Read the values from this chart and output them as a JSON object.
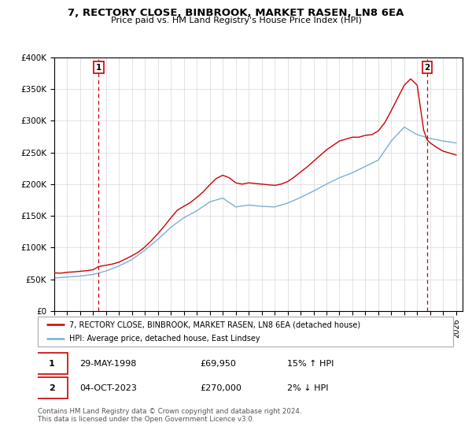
{
  "title": "7, RECTORY CLOSE, BINBROOK, MARKET RASEN, LN8 6EA",
  "subtitle": "Price paid vs. HM Land Registry's House Price Index (HPI)",
  "property_label": "7, RECTORY CLOSE, BINBROOK, MARKET RASEN, LN8 6EA (detached house)",
  "hpi_label": "HPI: Average price, detached house, East Lindsey",
  "transaction1_date": "29-MAY-1998",
  "transaction1_price": "£69,950",
  "transaction1_hpi": "15% ↑ HPI",
  "transaction2_date": "04-OCT-2023",
  "transaction2_price": "£270,000",
  "transaction2_hpi": "2% ↓ HPI",
  "footer": "Contains HM Land Registry data © Crown copyright and database right 2024.\nThis data is licensed under the Open Government Licence v3.0.",
  "property_color": "#cc0000",
  "hpi_color": "#7bafd4",
  "transaction1_x": 1998.42,
  "transaction2_x": 2023.76,
  "ylim": [
    0,
    400000
  ],
  "xlim": [
    1995.0,
    2026.5
  ],
  "hpi_x": [
    1995,
    1996,
    1997,
    1998,
    1999,
    2000,
    2001,
    2002,
    2003,
    2004,
    2005,
    2006,
    2007,
    2008,
    2009,
    2010,
    2011,
    2012,
    2013,
    2014,
    2015,
    2016,
    2017,
    2018,
    2019,
    2020,
    2021,
    2022,
    2023,
    2024,
    2025,
    2026
  ],
  "hpi_values": [
    52000,
    53500,
    55000,
    57500,
    63000,
    71000,
    81000,
    96000,
    113000,
    132000,
    147000,
    158000,
    172000,
    178000,
    164000,
    167000,
    165000,
    164000,
    170000,
    179000,
    189000,
    200000,
    210000,
    218000,
    228000,
    238000,
    268000,
    290000,
    278000,
    272000,
    268000,
    265000
  ],
  "property_values_x": [
    1995.0,
    1995.5,
    1996.0,
    1996.5,
    1997.0,
    1997.5,
    1998.0,
    1998.42,
    1999.0,
    1999.5,
    2000.0,
    2000.5,
    2001.0,
    2001.5,
    2002.0,
    2002.5,
    2003.0,
    2003.5,
    2004.0,
    2004.5,
    2005.0,
    2005.5,
    2006.0,
    2006.5,
    2007.0,
    2007.5,
    2008.0,
    2008.5,
    2009.0,
    2009.5,
    2010.0,
    2010.5,
    2011.0,
    2011.5,
    2012.0,
    2012.5,
    2013.0,
    2013.5,
    2014.0,
    2014.5,
    2015.0,
    2015.5,
    2016.0,
    2016.5,
    2017.0,
    2017.5,
    2018.0,
    2018.5,
    2019.0,
    2019.5,
    2020.0,
    2020.5,
    2021.0,
    2021.5,
    2022.0,
    2022.5,
    2023.0,
    2023.5,
    2023.76,
    2024.0,
    2024.5,
    2025.0,
    2025.5,
    2026.0
  ],
  "property_values_y": [
    60000,
    59500,
    61000,
    61500,
    62500,
    63500,
    65000,
    69950,
    72000,
    74000,
    77000,
    82000,
    87000,
    93000,
    101000,
    111000,
    122000,
    134000,
    147000,
    159000,
    165000,
    171000,
    179000,
    188000,
    199000,
    209000,
    214000,
    210000,
    202000,
    200000,
    202000,
    201000,
    200000,
    199000,
    198000,
    200000,
    204000,
    211000,
    219000,
    227000,
    236000,
    245000,
    254000,
    261000,
    268000,
    271000,
    274000,
    274000,
    277000,
    278000,
    284000,
    297000,
    316000,
    336000,
    356000,
    366000,
    356000,
    285000,
    270000,
    265000,
    258000,
    252000,
    249000,
    246000
  ]
}
